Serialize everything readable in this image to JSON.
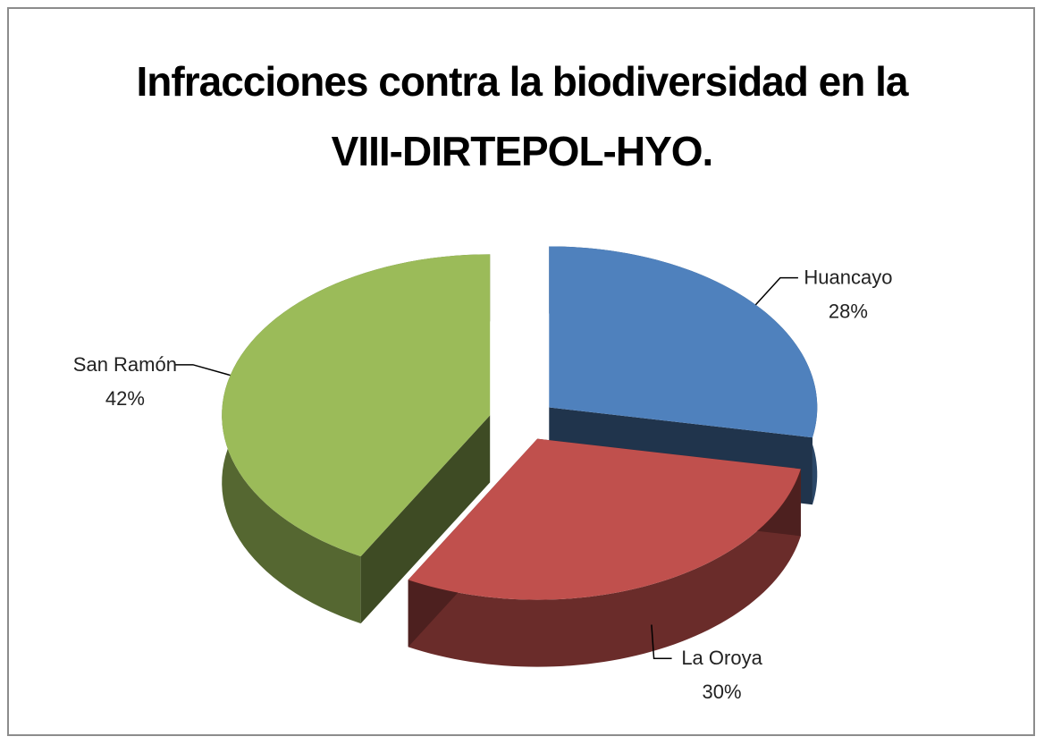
{
  "chart_data": {
    "type": "pie",
    "title": "Infracciones contra la biodiversidad en la VIII-DIRTEPOL-HYO.",
    "categories": [
      "Huancayo",
      "La Oroya",
      "San Ramón"
    ],
    "values": [
      28,
      30,
      42
    ],
    "value_labels": [
      "28%",
      "30%",
      "42%"
    ],
    "colors": [
      "#4f81bd",
      "#c0504d",
      "#9bbb59"
    ]
  }
}
